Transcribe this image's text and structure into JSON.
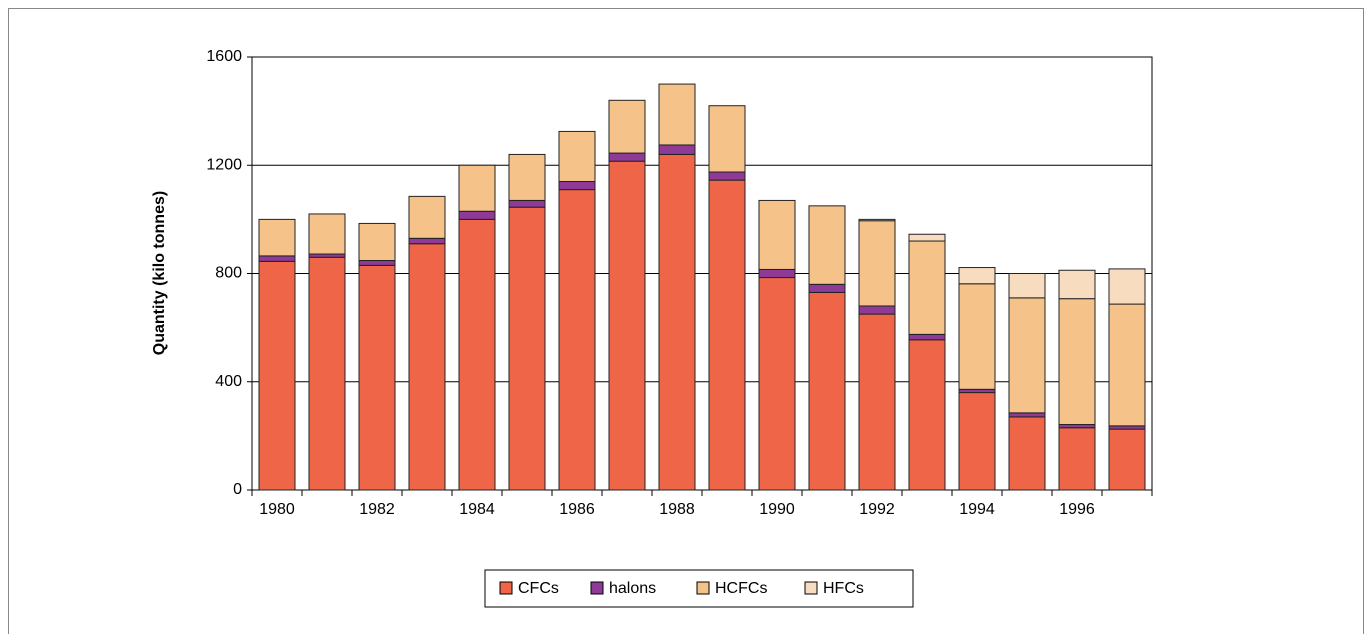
{
  "chart_data": {
    "type": "stacked_bar",
    "y_label": "Quantity (kilo tonnes)",
    "categories": [
      "1980",
      null,
      "1982",
      null,
      "1984",
      null,
      "1986",
      null,
      "1988",
      null,
      "1990",
      null,
      "1992",
      null,
      "1994",
      null,
      "1996",
      null
    ],
    "series": [
      {
        "name": "CFCs",
        "color": "#ef6548",
        "values": [
          845,
          860,
          830,
          910,
          1000,
          1045,
          1110,
          1215,
          1240,
          1145,
          785,
          730,
          650,
          555,
          360,
          270,
          230,
          225
        ]
      },
      {
        "name": "halons",
        "color": "#8e3a96",
        "values": [
          20,
          12,
          18,
          20,
          30,
          25,
          30,
          30,
          35,
          30,
          30,
          30,
          30,
          20,
          12,
          15,
          12,
          12
        ]
      },
      {
        "name": "HCFCs",
        "color": "#f5c28a",
        "values": [
          135,
          148,
          137,
          155,
          170,
          170,
          185,
          195,
          225,
          245,
          255,
          290,
          315,
          345,
          390,
          425,
          465,
          450
        ]
      },
      {
        "name": "HFCs",
        "color": "#f8dcc0",
        "values": [
          0,
          0,
          0,
          0,
          0,
          0,
          0,
          0,
          0,
          0,
          0,
          0,
          5,
          25,
          60,
          90,
          105,
          130
        ]
      }
    ],
    "ylim": [
      0,
      1600
    ],
    "yticks": [
      0,
      400,
      800,
      1200,
      1600
    ],
    "grid": true,
    "legend": "bottom"
  }
}
